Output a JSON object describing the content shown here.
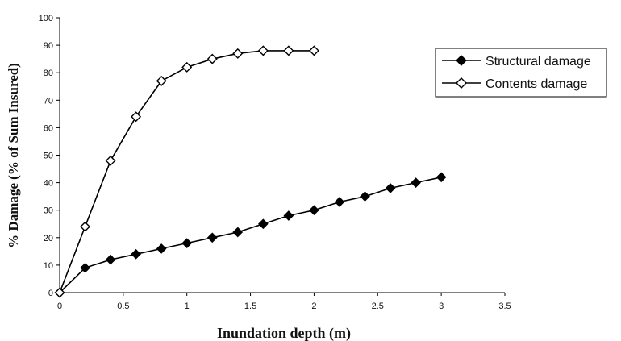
{
  "chart_data": {
    "type": "line",
    "title": "",
    "xlabel": "Inundation depth (m)",
    "ylabel": "% Damage (% of Sum Insured)",
    "xlim": [
      0,
      3.5
    ],
    "ylim": [
      0,
      100
    ],
    "xticks": [
      "0",
      "0.5",
      "1",
      "1.5",
      "2",
      "2.5",
      "3",
      "3.5"
    ],
    "yticks": [
      "0",
      "10",
      "20",
      "30",
      "40",
      "50",
      "60",
      "70",
      "80",
      "90",
      "100"
    ],
    "grid": false,
    "legend_position": "right",
    "series": [
      {
        "name": "Structural damage",
        "marker": "filled-diamond",
        "color": "#000000",
        "x": [
          0,
          0.2,
          0.4,
          0.6,
          0.8,
          1.0,
          1.2,
          1.4,
          1.6,
          1.8,
          2.0,
          2.2,
          2.4,
          2.6,
          2.8,
          3.0
        ],
        "y": [
          0,
          9,
          12,
          14,
          16,
          18,
          20,
          22,
          25,
          28,
          30,
          33,
          35,
          38,
          40,
          42
        ]
      },
      {
        "name": "Contents damage",
        "marker": "open-diamond",
        "color": "#000000",
        "x": [
          0,
          0.2,
          0.4,
          0.6,
          0.8,
          1.0,
          1.2,
          1.4,
          1.6,
          1.8,
          2.0
        ],
        "y": [
          0,
          24,
          48,
          64,
          77,
          82,
          85,
          87,
          88,
          88,
          88
        ]
      }
    ]
  }
}
